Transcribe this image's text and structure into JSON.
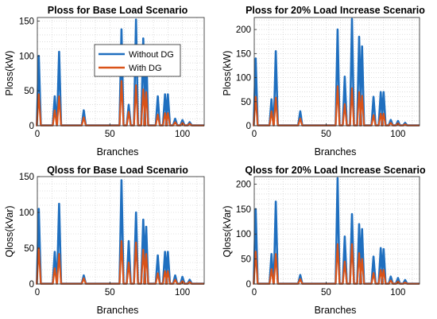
{
  "figure": {
    "background": "#ffffff",
    "series_colors": [
      "#1f6fbf",
      "#d95319"
    ]
  },
  "chart_data": [
    {
      "type": "line",
      "title": "Ploss for Base Load Scenario",
      "xlabel": "Branches",
      "ylabel": "Ploss(kW)",
      "xlim": [
        0,
        115
      ],
      "ylim": [
        0,
        155
      ],
      "xticks": [
        0,
        50,
        100
      ],
      "yticks": [
        0,
        50,
        100,
        150
      ],
      "grid": true,
      "legend": {
        "placement": "top-center",
        "entries": [
          "Without DG",
          "With DG"
        ]
      },
      "peaks": [
        {
          "name": "Without DG",
          "points": [
            [
              1,
              100
            ],
            [
              12,
              42
            ],
            [
              15,
              106
            ],
            [
              32,
              22
            ],
            [
              58,
              138
            ],
            [
              63,
              30
            ],
            [
              68,
              152
            ],
            [
              73,
              125
            ],
            [
              75,
              110
            ],
            [
              83,
              42
            ],
            [
              88,
              45
            ],
            [
              90,
              45
            ],
            [
              95,
              10
            ],
            [
              100,
              8
            ],
            [
              105,
              5
            ]
          ]
        },
        {
          "name": "With DG",
          "points": [
            [
              1,
              45
            ],
            [
              12,
              22
            ],
            [
              15,
              42
            ],
            [
              32,
              12
            ],
            [
              58,
              64
            ],
            [
              63,
              20
            ],
            [
              68,
              58
            ],
            [
              73,
              52
            ],
            [
              75,
              48
            ],
            [
              83,
              16
            ],
            [
              88,
              18
            ],
            [
              90,
              18
            ],
            [
              95,
              5
            ],
            [
              100,
              4
            ],
            [
              105,
              3
            ]
          ]
        }
      ]
    },
    {
      "type": "line",
      "title": "Ploss for 20% Load Increase Scenario",
      "xlabel": "Branches",
      "ylabel": "Ploss(kW)",
      "xlim": [
        0,
        115
      ],
      "ylim": [
        0,
        225
      ],
      "xticks": [
        0,
        50,
        100
      ],
      "yticks": [
        0,
        50,
        100,
        150,
        200
      ],
      "grid": true,
      "legend": null,
      "peaks": [
        {
          "name": "Without DG",
          "points": [
            [
              1,
              140
            ],
            [
              12,
              55
            ],
            [
              15,
              155
            ],
            [
              32,
              30
            ],
            [
              58,
              200
            ],
            [
              63,
              102
            ],
            [
              68,
              222
            ],
            [
              73,
              185
            ],
            [
              75,
              165
            ],
            [
              83,
              60
            ],
            [
              88,
              70
            ],
            [
              90,
              70
            ],
            [
              95,
              12
            ],
            [
              100,
              10
            ],
            [
              105,
              6
            ]
          ]
        },
        {
          "name": "With DG",
          "points": [
            [
              1,
              60
            ],
            [
              12,
              30
            ],
            [
              15,
              58
            ],
            [
              32,
              15
            ],
            [
              58,
              82
            ],
            [
              63,
              45
            ],
            [
              68,
              78
            ],
            [
              73,
              70
            ],
            [
              75,
              62
            ],
            [
              83,
              22
            ],
            [
              88,
              25
            ],
            [
              90,
              25
            ],
            [
              95,
              6
            ],
            [
              100,
              5
            ],
            [
              105,
              3
            ]
          ]
        }
      ]
    },
    {
      "type": "line",
      "title": "Qloss for Base Load Scenario",
      "xlabel": "Branches",
      "ylabel": "Qloss(kVar)",
      "xlim": [
        0,
        115
      ],
      "ylim": [
        0,
        150
      ],
      "xticks": [
        0,
        50,
        100
      ],
      "yticks": [
        0,
        50,
        100,
        150
      ],
      "grid": true,
      "legend": null,
      "peaks": [
        {
          "name": "Without DG",
          "points": [
            [
              1,
              105
            ],
            [
              12,
              45
            ],
            [
              15,
              112
            ],
            [
              32,
              12
            ],
            [
              58,
              145
            ],
            [
              63,
              60
            ],
            [
              68,
              100
            ],
            [
              73,
              90
            ],
            [
              75,
              80
            ],
            [
              83,
              40
            ],
            [
              88,
              45
            ],
            [
              90,
              45
            ],
            [
              95,
              12
            ],
            [
              100,
              10
            ],
            [
              105,
              6
            ]
          ]
        },
        {
          "name": "With DG",
          "points": [
            [
              1,
              50
            ],
            [
              12,
              22
            ],
            [
              15,
              42
            ],
            [
              32,
              8
            ],
            [
              58,
              60
            ],
            [
              63,
              30
            ],
            [
              68,
              58
            ],
            [
              73,
              48
            ],
            [
              75,
              42
            ],
            [
              83,
              15
            ],
            [
              88,
              18
            ],
            [
              90,
              18
            ],
            [
              95,
              6
            ],
            [
              100,
              4
            ],
            [
              105,
              3
            ]
          ]
        }
      ]
    },
    {
      "type": "line",
      "title": "Qloss for 20% Load Increase Scenario",
      "xlabel": "Branches",
      "ylabel": "Qloss(kVar)",
      "xlim": [
        0,
        115
      ],
      "ylim": [
        0,
        215
      ],
      "xticks": [
        0,
        50,
        100
      ],
      "yticks": [
        0,
        50,
        100,
        150,
        200
      ],
      "grid": true,
      "legend": null,
      "peaks": [
        {
          "name": "Without DG",
          "points": [
            [
              1,
              150
            ],
            [
              12,
              60
            ],
            [
              15,
              165
            ],
            [
              32,
              18
            ],
            [
              58,
              212
            ],
            [
              63,
              95
            ],
            [
              68,
              140
            ],
            [
              73,
              120
            ],
            [
              75,
              110
            ],
            [
              83,
              55
            ],
            [
              88,
              72
            ],
            [
              90,
              70
            ],
            [
              95,
              15
            ],
            [
              100,
              12
            ],
            [
              105,
              8
            ]
          ]
        },
        {
          "name": "With DG",
          "points": [
            [
              1,
              65
            ],
            [
              12,
              30
            ],
            [
              15,
              60
            ],
            [
              32,
              10
            ],
            [
              58,
              80
            ],
            [
              63,
              45
            ],
            [
              68,
              80
            ],
            [
              73,
              62
            ],
            [
              75,
              50
            ],
            [
              83,
              22
            ],
            [
              88,
              28
            ],
            [
              90,
              28
            ],
            [
              95,
              7
            ],
            [
              100,
              5
            ],
            [
              105,
              3
            ]
          ]
        }
      ]
    }
  ]
}
